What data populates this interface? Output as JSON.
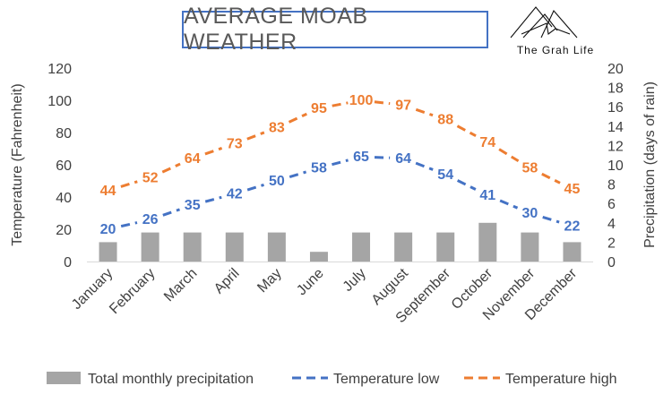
{
  "logo_text": "The Grah Life",
  "chart_data": {
    "type": "bar+line",
    "title": "AVERAGE MOAB WEATHER",
    "categories": [
      "January",
      "February",
      "March",
      "April",
      "May",
      "June",
      "July",
      "August",
      "September",
      "October",
      "November",
      "December"
    ],
    "ylabel": "Temperature (Fahrenheit)",
    "ylabel_right": "Precipitation (days of rain)",
    "ylim": [
      0,
      120
    ],
    "ylim_right": [
      0,
      20
    ],
    "yticks": [
      0,
      20,
      40,
      60,
      80,
      100,
      120
    ],
    "yticks_right": [
      0,
      2,
      4,
      6,
      8,
      10,
      12,
      14,
      16,
      18,
      20
    ],
    "grid": false,
    "legend_position": "bottom",
    "series": [
      {
        "name": "Total monthly precipitation",
        "type": "bar",
        "axis": "right",
        "color": "#a5a5a5",
        "values": [
          2,
          3,
          3,
          3,
          3,
          1,
          3,
          3,
          3,
          4,
          3,
          2
        ]
      },
      {
        "name": "Temperature low",
        "type": "line",
        "style": "dashed",
        "axis": "left",
        "color": "#4472c4",
        "values": [
          20,
          26,
          35,
          42,
          50,
          58,
          65,
          64,
          54,
          41,
          30,
          22
        ]
      },
      {
        "name": "Temperature high",
        "type": "line",
        "style": "dashed",
        "axis": "left",
        "color": "#ed7d31",
        "values": [
          44,
          52,
          64,
          73,
          83,
          95,
          100,
          97,
          88,
          74,
          58,
          45
        ]
      }
    ]
  }
}
